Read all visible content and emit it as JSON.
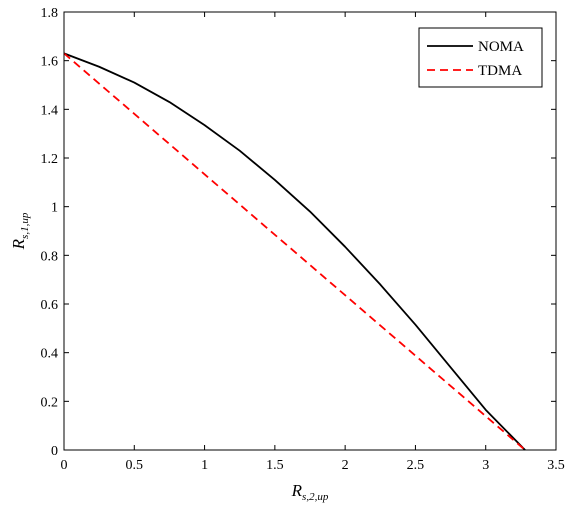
{
  "chart_data": {
    "type": "line",
    "xlabel": {
      "main": "R",
      "sub_var": "s",
      "sub_rest": ",2,up"
    },
    "ylabel": {
      "main": "R",
      "sub_var": "s",
      "sub_rest": ",1,up"
    },
    "xlim": [
      0,
      3.5
    ],
    "ylim": [
      0,
      1.8
    ],
    "xticks": [
      0,
      0.5,
      1,
      1.5,
      2,
      2.5,
      3,
      3.5
    ],
    "xtick_labels": [
      "0",
      "0.5",
      "1",
      "1.5",
      "2",
      "2.5",
      "3",
      "3.5"
    ],
    "yticks": [
      0,
      0.2,
      0.4,
      0.6,
      0.8,
      1,
      1.2,
      1.4,
      1.6,
      1.8
    ],
    "ytick_labels": [
      "0",
      "0.2",
      "0.4",
      "0.6",
      "0.8",
      "1",
      "1.2",
      "1.4",
      "1.6",
      "1.8"
    ],
    "grid": false,
    "legend_position": "top-right",
    "series": [
      {
        "name": "NOMA",
        "color": "#000000",
        "style": "solid",
        "x": [
          0,
          0.25,
          0.5,
          0.75,
          1.0,
          1.25,
          1.5,
          1.75,
          2.0,
          2.25,
          2.5,
          2.75,
          3.0,
          3.28
        ],
        "y": [
          1.63,
          1.575,
          1.51,
          1.43,
          1.335,
          1.23,
          1.11,
          0.98,
          0.835,
          0.68,
          0.515,
          0.34,
          0.165,
          0.0
        ]
      },
      {
        "name": "TDMA",
        "color": "#ff0000",
        "style": "dashed",
        "x": [
          0,
          3.28
        ],
        "y": [
          1.63,
          0.0
        ]
      }
    ]
  }
}
